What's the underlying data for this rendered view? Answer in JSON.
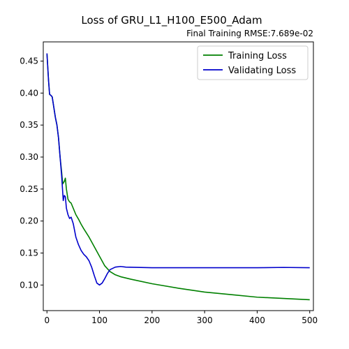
{
  "chart_data": {
    "type": "line",
    "title": "Loss of GRU_L1_H100_E500_Adam",
    "subtitle": "Final Training RMSE:7.689e-02",
    "xlabel": "",
    "ylabel": "",
    "xlim": [
      -7,
      507
    ],
    "ylim": [
      0.06,
      0.48
    ],
    "xticks": [
      0,
      100,
      200,
      300,
      400,
      500
    ],
    "yticks": [
      0.1,
      0.15,
      0.2,
      0.25,
      0.3,
      0.35,
      0.4,
      0.45
    ],
    "xtick_labels": [
      "0",
      "100",
      "200",
      "300",
      "400",
      "500"
    ],
    "ytick_labels": [
      "0.10",
      "0.15",
      "0.20",
      "0.25",
      "0.30",
      "0.35",
      "0.40",
      "0.45"
    ],
    "grid": false,
    "legend": "top-right",
    "series": [
      {
        "name": "Training Loss",
        "color": "#008000",
        "x": [
          0,
          3,
          5,
          8,
          10,
          13,
          16,
          19,
          22,
          25,
          28,
          30,
          33,
          35,
          37,
          40,
          43,
          46,
          50,
          55,
          60,
          65,
          70,
          80,
          90,
          100,
          110,
          120,
          130,
          140,
          160,
          200,
          250,
          300,
          350,
          400,
          450,
          500
        ],
        "y": [
          0.462,
          0.42,
          0.398,
          0.396,
          0.394,
          0.378,
          0.362,
          0.35,
          0.33,
          0.3,
          0.276,
          0.258,
          0.262,
          0.267,
          0.25,
          0.234,
          0.23,
          0.228,
          0.22,
          0.21,
          0.203,
          0.195,
          0.188,
          0.175,
          0.16,
          0.145,
          0.13,
          0.121,
          0.116,
          0.113,
          0.109,
          0.102,
          0.095,
          0.089,
          0.085,
          0.081,
          0.079,
          0.077
        ]
      },
      {
        "name": "Validating Loss",
        "color": "#0000cc",
        "x": [
          0,
          3,
          5,
          8,
          10,
          13,
          16,
          19,
          22,
          25,
          28,
          31,
          33,
          35,
          37,
          40,
          43,
          46,
          50,
          55,
          60,
          65,
          70,
          75,
          80,
          85,
          90,
          95,
          100,
          105,
          110,
          115,
          120,
          130,
          140,
          150,
          200,
          250,
          300,
          350,
          400,
          450,
          500
        ],
        "y": [
          0.462,
          0.42,
          0.398,
          0.396,
          0.394,
          0.378,
          0.362,
          0.35,
          0.33,
          0.3,
          0.27,
          0.232,
          0.24,
          0.238,
          0.22,
          0.21,
          0.204,
          0.206,
          0.196,
          0.175,
          0.163,
          0.154,
          0.148,
          0.144,
          0.138,
          0.128,
          0.115,
          0.103,
          0.1,
          0.103,
          0.11,
          0.118,
          0.124,
          0.128,
          0.129,
          0.128,
          0.127,
          0.127,
          0.127,
          0.127,
          0.127,
          0.1275,
          0.127
        ]
      }
    ]
  }
}
